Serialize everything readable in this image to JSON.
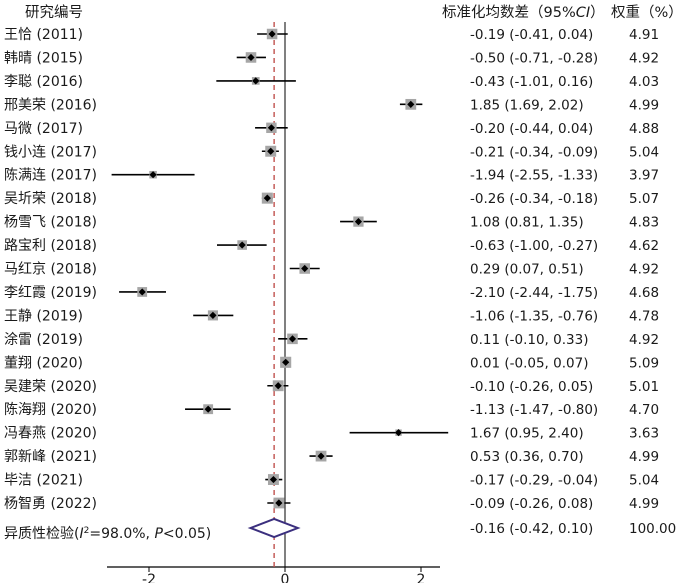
{
  "chart_data": {
    "type": "forest",
    "headers": {
      "study": "研究编号",
      "effect": "标准化均数差（95%",
      "effect_ci": "CI",
      "effect_close": "）",
      "weight": "权重（%）"
    },
    "studies": [
      {
        "label": "王恰 (2011)",
        "est": -0.19,
        "lo": -0.41,
        "hi": 0.04,
        "ci_text": "-0.19 (-0.41, 0.04)",
        "weight": "4.91"
      },
      {
        "label": "韩晴 (2015)",
        "est": -0.5,
        "lo": -0.71,
        "hi": -0.28,
        "ci_text": "-0.50 (-0.71, -0.28)",
        "weight": "4.92"
      },
      {
        "label": "李聪 (2016)",
        "est": -0.43,
        "lo": -1.01,
        "hi": 0.16,
        "ci_text": "-0.43 (-1.01, 0.16)",
        "weight": "4.03"
      },
      {
        "label": "邢美荣 (2016)",
        "est": 1.85,
        "lo": 1.69,
        "hi": 2.02,
        "ci_text": "1.85 (1.69, 2.02)",
        "weight": "4.99"
      },
      {
        "label": "马微 (2017)",
        "est": -0.2,
        "lo": -0.44,
        "hi": 0.04,
        "ci_text": "-0.20 (-0.44, 0.04)",
        "weight": "4.88"
      },
      {
        "label": "钱小连 (2017)",
        "est": -0.21,
        "lo": -0.34,
        "hi": -0.09,
        "ci_text": "-0.21 (-0.34, -0.09)",
        "weight": "5.04"
      },
      {
        "label": "陈满连 (2017)",
        "est": -1.94,
        "lo": -2.55,
        "hi": -1.33,
        "ci_text": "-1.94 (-2.55, -1.33)",
        "weight": "3.97"
      },
      {
        "label": "吴圻荣 (2018)",
        "est": -0.26,
        "lo": -0.34,
        "hi": -0.18,
        "ci_text": "-0.26 (-0.34, -0.18)",
        "weight": "5.07"
      },
      {
        "label": "杨雪飞 (2018)",
        "est": 1.08,
        "lo": 0.81,
        "hi": 1.35,
        "ci_text": "1.08 (0.81, 1.35)",
        "weight": "4.83"
      },
      {
        "label": "路宝利 (2018)",
        "est": -0.63,
        "lo": -1.0,
        "hi": -0.27,
        "ci_text": "-0.63 (-1.00, -0.27)",
        "weight": "4.62"
      },
      {
        "label": "马红京 (2018)",
        "est": 0.29,
        "lo": 0.07,
        "hi": 0.51,
        "ci_text": "0.29 (0.07, 0.51)",
        "weight": "4.92"
      },
      {
        "label": "李红霞 (2019)",
        "est": -2.1,
        "lo": -2.44,
        "hi": -1.75,
        "ci_text": "-2.10 (-2.44, -1.75)",
        "weight": "4.68"
      },
      {
        "label": "王静 (2019)",
        "est": -1.06,
        "lo": -1.35,
        "hi": -0.76,
        "ci_text": "-1.06 (-1.35, -0.76)",
        "weight": "4.78"
      },
      {
        "label": "涂雷 (2019)",
        "est": 0.11,
        "lo": -0.1,
        "hi": 0.33,
        "ci_text": "0.11 (-0.10, 0.33)",
        "weight": "4.92"
      },
      {
        "label": "董翔 (2020)",
        "est": 0.01,
        "lo": -0.05,
        "hi": 0.07,
        "ci_text": "0.01 (-0.05, 0.07)",
        "weight": "5.09"
      },
      {
        "label": "吴建荣 (2020)",
        "est": -0.1,
        "lo": -0.26,
        "hi": 0.05,
        "ci_text": "-0.10 (-0.26, 0.05)",
        "weight": "5.01"
      },
      {
        "label": "陈海翔 (2020)",
        "est": -1.13,
        "lo": -1.47,
        "hi": -0.8,
        "ci_text": "-1.13 (-1.47, -0.80)",
        "weight": "4.70"
      },
      {
        "label": "冯春燕 (2020)",
        "est": 1.67,
        "lo": 0.95,
        "hi": 2.4,
        "ci_text": "1.67 (0.95, 2.40)",
        "weight": "3.63"
      },
      {
        "label": "郭新峰 (2021)",
        "est": 0.53,
        "lo": 0.36,
        "hi": 0.7,
        "ci_text": "0.53 (0.36, 0.70)",
        "weight": "4.99"
      },
      {
        "label": "毕洁 (2021)",
        "est": -0.17,
        "lo": -0.29,
        "hi": -0.04,
        "ci_text": "-0.17 (-0.29, -0.04)",
        "weight": "5.04"
      },
      {
        "label": "杨智勇 (2022)",
        "est": -0.09,
        "lo": -0.26,
        "hi": 0.08,
        "ci_text": "-0.09 (-0.26, 0.08)",
        "weight": "4.99"
      }
    ],
    "overall": {
      "label_prefix": "异质性检验(",
      "label_i": "I",
      "label_sup": "2",
      "label_mid": "=98.0%, ",
      "label_p": "P",
      "label_suffix": "<0.05)",
      "est": -0.16,
      "lo": -0.42,
      "hi": 0.1,
      "ci_text": "-0.16 (-0.42, 0.10)",
      "weight": "100.00"
    },
    "x_ticks": [
      -2,
      0,
      2
    ],
    "x_tick_labels": [
      "-2",
      "0",
      "2"
    ],
    "null_line": 0,
    "reference_line": -0.16,
    "colors": {
      "ci_line": "#000000",
      "box": "#a6a6a6",
      "point": "#000000",
      "diamond": "#3b2f7e",
      "reference_line": "#c0504d",
      "axis": "#000000"
    }
  }
}
